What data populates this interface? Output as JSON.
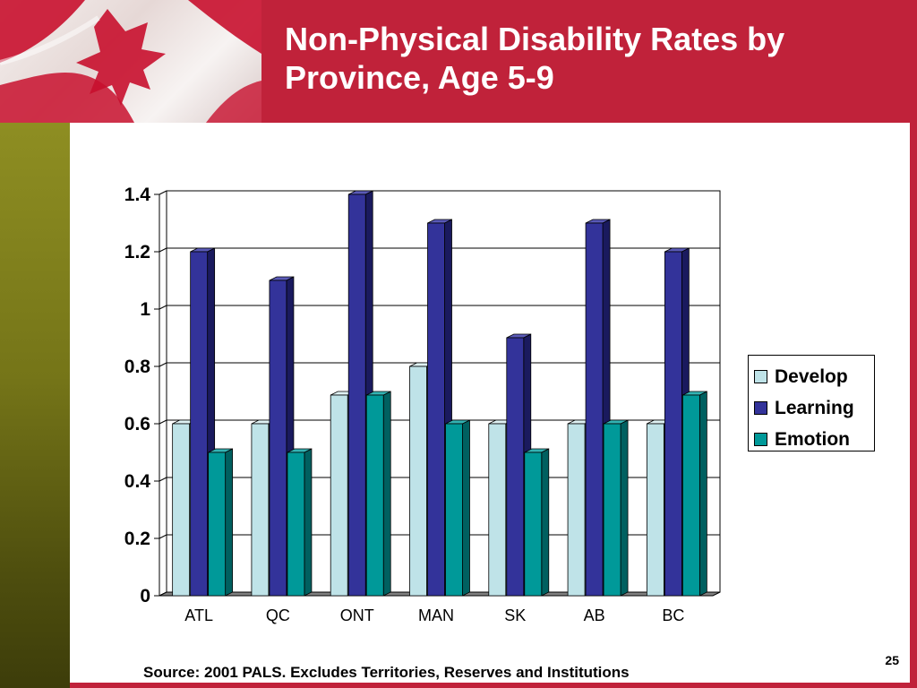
{
  "slide": {
    "title": "Non-Physical Disability Rates by\nProvince, Age 5-9",
    "source": "Source: 2001 PALS.  Excludes Territories, Reserves and Institutions",
    "page_number": "25"
  },
  "colors": {
    "header": "#c0223a",
    "develop": "#bfe3e8",
    "learning": "#33339a",
    "emotion": "#009999"
  },
  "chart_data": {
    "type": "bar",
    "categories": [
      "ATL",
      "QC",
      "ONT",
      "MAN",
      "SK",
      "AB",
      "BC"
    ],
    "series": [
      {
        "name": "Develop",
        "values": [
          0.6,
          0.6,
          0.7,
          0.8,
          0.6,
          0.6,
          0.6
        ]
      },
      {
        "name": "Learning",
        "values": [
          1.2,
          1.1,
          1.4,
          1.3,
          0.9,
          1.3,
          1.2
        ]
      },
      {
        "name": "Emotion",
        "values": [
          0.5,
          0.5,
          0.7,
          0.6,
          0.5,
          0.6,
          0.7
        ]
      }
    ],
    "ylim": [
      0,
      1.4
    ],
    "yticks": [
      "0",
      "0.2",
      "0.4",
      "0.6",
      "0.8",
      "1",
      "1.2",
      "1.4"
    ],
    "title": "",
    "xlabel": "",
    "ylabel": "",
    "grid": true,
    "legend_position": "right",
    "style": "3d"
  }
}
